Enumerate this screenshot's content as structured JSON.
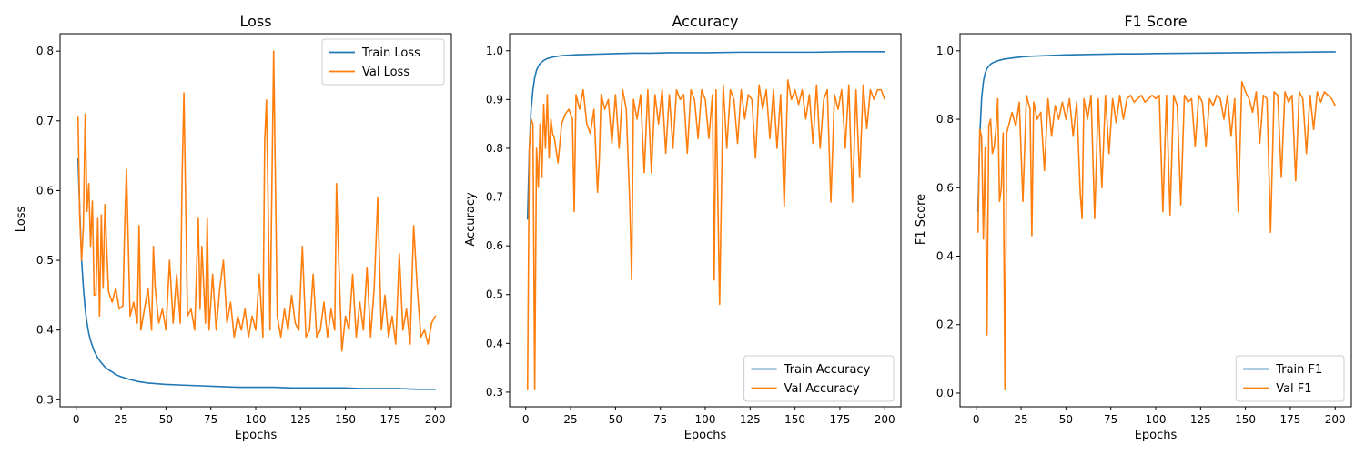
{
  "chart_data": [
    {
      "type": "line",
      "title": "Loss",
      "xlabel": "Epochs",
      "ylabel": "Loss",
      "xlim": [
        -9,
        209
      ],
      "ylim": [
        0.29,
        0.825
      ],
      "xticks": [
        0,
        25,
        50,
        75,
        100,
        125,
        150,
        175,
        200
      ],
      "yticks": [
        0.3,
        0.4,
        0.5,
        0.6,
        0.7,
        0.8
      ],
      "tick_decimals": 1,
      "grid": false,
      "legend": "top-right",
      "series": [
        {
          "name": "Train Loss",
          "color": "#1f77b4",
          "x": [
            1,
            2,
            3,
            4,
            5,
            6,
            7,
            8,
            10,
            12,
            14,
            16,
            18,
            20,
            22,
            25,
            30,
            35,
            40,
            50,
            60,
            70,
            80,
            90,
            100,
            110,
            120,
            130,
            140,
            150,
            160,
            170,
            180,
            190,
            200
          ],
          "y": [
            0.645,
            0.57,
            0.5,
            0.46,
            0.43,
            0.41,
            0.395,
            0.385,
            0.37,
            0.36,
            0.353,
            0.347,
            0.343,
            0.34,
            0.336,
            0.333,
            0.329,
            0.326,
            0.324,
            0.322,
            0.321,
            0.32,
            0.319,
            0.318,
            0.318,
            0.318,
            0.317,
            0.317,
            0.317,
            0.317,
            0.316,
            0.316,
            0.316,
            0.315,
            0.315
          ]
        },
        {
          "name": "Val Loss",
          "color": "#ff7f0e",
          "x": [
            1,
            2,
            3,
            4,
            5,
            6,
            7,
            8,
            9,
            10,
            11,
            12,
            13,
            14,
            15,
            16,
            18,
            20,
            22,
            24,
            26,
            27,
            28,
            30,
            32,
            34,
            35,
            36,
            38,
            40,
            42,
            43,
            44,
            46,
            47,
            48,
            50,
            52,
            54,
            56,
            58,
            59,
            60,
            62,
            64,
            66,
            68,
            69,
            70,
            72,
            73,
            74,
            76,
            78,
            80,
            82,
            84,
            86,
            88,
            90,
            92,
            94,
            96,
            98,
            100,
            102,
            104,
            105,
            106,
            108,
            110,
            112,
            114,
            116,
            118,
            120,
            122,
            124,
            126,
            128,
            130,
            132,
            134,
            136,
            138,
            140,
            142,
            144,
            145,
            146,
            148,
            150,
            152,
            154,
            156,
            158,
            160,
            162,
            164,
            166,
            168,
            170,
            172,
            174,
            176,
            178,
            180,
            182,
            184,
            186,
            188,
            190,
            192,
            194,
            196,
            198,
            200
          ],
          "y": [
            0.705,
            0.56,
            0.5,
            0.55,
            0.71,
            0.57,
            0.61,
            0.52,
            0.585,
            0.45,
            0.45,
            0.56,
            0.42,
            0.565,
            0.46,
            0.58,
            0.455,
            0.44,
            0.46,
            0.43,
            0.435,
            0.55,
            0.63,
            0.42,
            0.44,
            0.41,
            0.55,
            0.4,
            0.43,
            0.46,
            0.4,
            0.52,
            0.46,
            0.41,
            0.42,
            0.43,
            0.4,
            0.5,
            0.41,
            0.48,
            0.41,
            0.62,
            0.74,
            0.42,
            0.43,
            0.4,
            0.56,
            0.43,
            0.52,
            0.41,
            0.56,
            0.4,
            0.48,
            0.4,
            0.46,
            0.5,
            0.41,
            0.44,
            0.39,
            0.42,
            0.4,
            0.43,
            0.39,
            0.42,
            0.4,
            0.48,
            0.39,
            0.67,
            0.73,
            0.4,
            0.8,
            0.42,
            0.39,
            0.43,
            0.4,
            0.45,
            0.41,
            0.4,
            0.52,
            0.39,
            0.4,
            0.48,
            0.39,
            0.4,
            0.44,
            0.39,
            0.43,
            0.4,
            0.61,
            0.52,
            0.37,
            0.42,
            0.4,
            0.48,
            0.39,
            0.44,
            0.4,
            0.49,
            0.39,
            0.46,
            0.59,
            0.4,
            0.45,
            0.39,
            0.42,
            0.38,
            0.51,
            0.4,
            0.43,
            0.38,
            0.55,
            0.46,
            0.39,
            0.4,
            0.38,
            0.41,
            0.42
          ]
        }
      ]
    },
    {
      "type": "line",
      "title": "Accuracy",
      "xlabel": "Epochs",
      "ylabel": "Accuracy",
      "xlim": [
        -9,
        209
      ],
      "ylim": [
        0.27,
        1.035
      ],
      "xticks": [
        0,
        25,
        50,
        75,
        100,
        125,
        150,
        175,
        200
      ],
      "yticks": [
        0.3,
        0.4,
        0.5,
        0.6,
        0.7,
        0.8,
        0.9,
        1.0
      ],
      "tick_decimals": 1,
      "grid": false,
      "legend": "bottom-right",
      "series": [
        {
          "name": "Train Accuracy",
          "color": "#1f77b4",
          "x": [
            1,
            2,
            3,
            4,
            5,
            6,
            7,
            8,
            10,
            12,
            15,
            20,
            25,
            30,
            40,
            50,
            60,
            70,
            80,
            90,
            100,
            120,
            140,
            160,
            180,
            200
          ],
          "y": [
            0.655,
            0.8,
            0.88,
            0.92,
            0.945,
            0.96,
            0.968,
            0.974,
            0.98,
            0.984,
            0.987,
            0.99,
            0.991,
            0.992,
            0.993,
            0.994,
            0.995,
            0.995,
            0.996,
            0.996,
            0.996,
            0.997,
            0.997,
            0.997,
            0.998,
            0.998
          ]
        },
        {
          "name": "Val Accuracy",
          "color": "#ff7f0e",
          "x": [
            1,
            2,
            3,
            4,
            5,
            6,
            7,
            8,
            9,
            10,
            11,
            12,
            13,
            14,
            15,
            16,
            18,
            20,
            22,
            24,
            26,
            27,
            28,
            30,
            32,
            34,
            36,
            38,
            40,
            41,
            42,
            44,
            46,
            48,
            50,
            52,
            54,
            56,
            58,
            59,
            60,
            62,
            64,
            66,
            68,
            70,
            72,
            74,
            76,
            78,
            80,
            82,
            84,
            86,
            88,
            90,
            92,
            94,
            96,
            98,
            100,
            102,
            104,
            105,
            106,
            108,
            110,
            112,
            114,
            116,
            118,
            120,
            122,
            124,
            126,
            128,
            130,
            132,
            134,
            136,
            138,
            140,
            142,
            144,
            146,
            148,
            150,
            152,
            154,
            156,
            158,
            160,
            162,
            164,
            166,
            168,
            170,
            172,
            174,
            176,
            178,
            180,
            182,
            184,
            186,
            188,
            190,
            192,
            194,
            196,
            198,
            200
          ],
          "y": [
            0.305,
            0.8,
            0.86,
            0.85,
            0.305,
            0.8,
            0.72,
            0.85,
            0.74,
            0.89,
            0.8,
            0.91,
            0.78,
            0.86,
            0.83,
            0.82,
            0.77,
            0.85,
            0.87,
            0.88,
            0.86,
            0.67,
            0.91,
            0.88,
            0.92,
            0.85,
            0.83,
            0.88,
            0.71,
            0.78,
            0.91,
            0.88,
            0.9,
            0.81,
            0.91,
            0.8,
            0.92,
            0.88,
            0.68,
            0.53,
            0.9,
            0.86,
            0.91,
            0.75,
            0.92,
            0.75,
            0.91,
            0.85,
            0.92,
            0.79,
            0.91,
            0.8,
            0.92,
            0.9,
            0.91,
            0.79,
            0.92,
            0.9,
            0.82,
            0.92,
            0.9,
            0.82,
            0.91,
            0.53,
            0.92,
            0.48,
            0.93,
            0.8,
            0.92,
            0.9,
            0.81,
            0.92,
            0.86,
            0.91,
            0.9,
            0.78,
            0.93,
            0.88,
            0.92,
            0.82,
            0.92,
            0.8,
            0.91,
            0.68,
            0.94,
            0.9,
            0.92,
            0.89,
            0.92,
            0.86,
            0.91,
            0.81,
            0.93,
            0.8,
            0.9,
            0.92,
            0.69,
            0.91,
            0.88,
            0.92,
            0.8,
            0.93,
            0.69,
            0.92,
            0.74,
            0.93,
            0.84,
            0.92,
            0.9,
            0.92,
            0.92,
            0.9
          ]
        }
      ]
    },
    {
      "type": "line",
      "title": "F1 Score",
      "xlabel": "Epochs",
      "ylabel": "F1 Score",
      "xlim": [
        -9,
        209
      ],
      "ylim": [
        -0.04,
        1.05
      ],
      "xticks": [
        0,
        25,
        50,
        75,
        100,
        125,
        150,
        175,
        200
      ],
      "yticks": [
        0.0,
        0.2,
        0.4,
        0.6,
        0.8,
        1.0
      ],
      "tick_decimals": 1,
      "grid": false,
      "legend": "bottom-right",
      "series": [
        {
          "name": "Train F1",
          "color": "#1f77b4",
          "x": [
            1,
            2,
            3,
            4,
            5,
            6,
            7,
            8,
            10,
            12,
            15,
            20,
            25,
            30,
            40,
            50,
            60,
            70,
            80,
            90,
            100,
            120,
            140,
            160,
            180,
            200
          ],
          "y": [
            0.53,
            0.75,
            0.86,
            0.91,
            0.935,
            0.948,
            0.955,
            0.961,
            0.967,
            0.971,
            0.975,
            0.979,
            0.982,
            0.984,
            0.986,
            0.988,
            0.989,
            0.99,
            0.991,
            0.991,
            0.992,
            0.993,
            0.994,
            0.995,
            0.996,
            0.997
          ]
        },
        {
          "name": "Val F1",
          "color": "#ff7f0e",
          "x": [
            1,
            2,
            3,
            4,
            5,
            6,
            7,
            8,
            9,
            10,
            11,
            12,
            13,
            14,
            15,
            16,
            17,
            18,
            20,
            22,
            24,
            26,
            28,
            30,
            31,
            32,
            34,
            36,
            38,
            40,
            42,
            44,
            46,
            48,
            50,
            52,
            54,
            56,
            58,
            59,
            60,
            62,
            64,
            66,
            68,
            70,
            72,
            74,
            76,
            78,
            80,
            82,
            84,
            86,
            88,
            90,
            92,
            94,
            96,
            98,
            100,
            102,
            104,
            106,
            108,
            110,
            112,
            114,
            116,
            118,
            120,
            122,
            124,
            126,
            128,
            130,
            132,
            134,
            136,
            138,
            140,
            142,
            144,
            146,
            148,
            150,
            152,
            154,
            156,
            158,
            160,
            162,
            164,
            166,
            168,
            170,
            172,
            174,
            176,
            178,
            180,
            182,
            184,
            186,
            188,
            190,
            192,
            194,
            196,
            198,
            200
          ],
          "y": [
            0.47,
            0.77,
            0.75,
            0.45,
            0.72,
            0.17,
            0.78,
            0.8,
            0.7,
            0.72,
            0.77,
            0.86,
            0.56,
            0.6,
            0.76,
            0.01,
            0.76,
            0.78,
            0.82,
            0.78,
            0.85,
            0.56,
            0.87,
            0.83,
            0.46,
            0.85,
            0.8,
            0.82,
            0.65,
            0.86,
            0.75,
            0.84,
            0.8,
            0.85,
            0.8,
            0.86,
            0.75,
            0.85,
            0.58,
            0.51,
            0.86,
            0.8,
            0.87,
            0.51,
            0.86,
            0.6,
            0.87,
            0.7,
            0.86,
            0.79,
            0.87,
            0.8,
            0.86,
            0.87,
            0.85,
            0.86,
            0.87,
            0.85,
            0.86,
            0.87,
            0.86,
            0.87,
            0.53,
            0.87,
            0.52,
            0.87,
            0.84,
            0.55,
            0.87,
            0.85,
            0.86,
            0.72,
            0.87,
            0.85,
            0.72,
            0.86,
            0.84,
            0.87,
            0.86,
            0.8,
            0.87,
            0.75,
            0.86,
            0.53,
            0.91,
            0.88,
            0.86,
            0.82,
            0.88,
            0.73,
            0.87,
            0.86,
            0.47,
            0.88,
            0.87,
            0.63,
            0.88,
            0.85,
            0.87,
            0.62,
            0.88,
            0.86,
            0.7,
            0.87,
            0.77,
            0.88,
            0.85,
            0.88,
            0.87,
            0.86,
            0.84
          ]
        }
      ]
    }
  ]
}
